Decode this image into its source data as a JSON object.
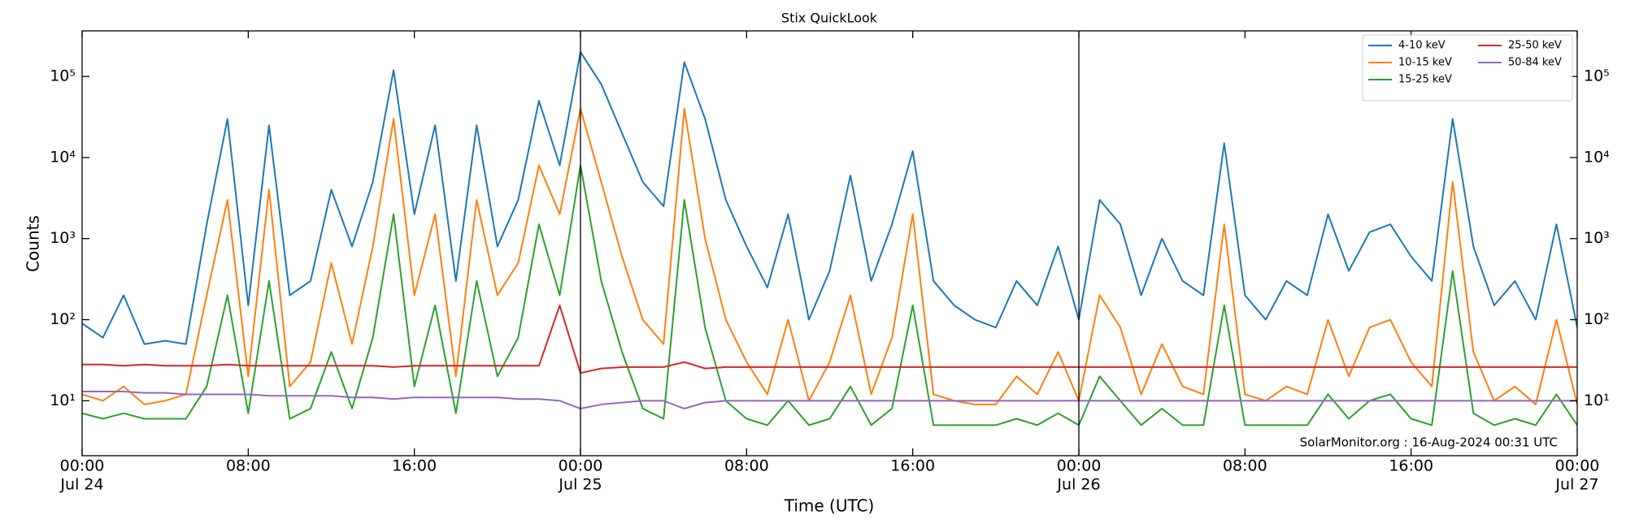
{
  "chart_data": {
    "type": "line",
    "title": "Stix QuickLook",
    "xlabel": "Time (UTC)",
    "ylabel": "Counts",
    "annotation": "SolarMonitor.org : 16-Aug-2024 00:31 UTC",
    "log_scale": true,
    "legend": "upper right",
    "grid": false,
    "vlines": [
      "Jul 25 00:00",
      "Jul 26 00:00"
    ],
    "x": [
      "Jul 24 00:00",
      "Jul 24 01:00",
      "Jul 24 02:00",
      "Jul 24 03:00",
      "Jul 24 04:00",
      "Jul 24 05:00",
      "Jul 24 06:00",
      "Jul 24 07:00",
      "Jul 24 08:00",
      "Jul 24 09:00",
      "Jul 24 10:00",
      "Jul 24 11:00",
      "Jul 24 12:00",
      "Jul 24 13:00",
      "Jul 24 14:00",
      "Jul 24 15:00",
      "Jul 24 16:00",
      "Jul 24 17:00",
      "Jul 24 18:00",
      "Jul 24 19:00",
      "Jul 24 20:00",
      "Jul 24 21:00",
      "Jul 24 22:00",
      "Jul 24 23:00",
      "Jul 25 00:00",
      "Jul 25 01:00",
      "Jul 25 02:00",
      "Jul 25 03:00",
      "Jul 25 04:00",
      "Jul 25 05:00",
      "Jul 25 06:00",
      "Jul 25 07:00",
      "Jul 25 08:00",
      "Jul 25 09:00",
      "Jul 25 10:00",
      "Jul 25 11:00",
      "Jul 25 12:00",
      "Jul 25 13:00",
      "Jul 25 14:00",
      "Jul 25 15:00",
      "Jul 25 16:00",
      "Jul 25 17:00",
      "Jul 25 18:00",
      "Jul 25 19:00",
      "Jul 25 20:00",
      "Jul 25 21:00",
      "Jul 25 22:00",
      "Jul 25 23:00",
      "Jul 26 00:00",
      "Jul 26 01:00",
      "Jul 26 02:00",
      "Jul 26 03:00",
      "Jul 26 04:00",
      "Jul 26 05:00",
      "Jul 26 06:00",
      "Jul 26 07:00",
      "Jul 26 08:00",
      "Jul 26 09:00",
      "Jul 26 10:00",
      "Jul 26 11:00",
      "Jul 26 12:00",
      "Jul 26 13:00",
      "Jul 26 14:00",
      "Jul 26 15:00",
      "Jul 26 16:00",
      "Jul 26 17:00",
      "Jul 26 18:00",
      "Jul 26 19:00",
      "Jul 26 20:00",
      "Jul 26 21:00",
      "Jul 26 22:00",
      "Jul 26 23:00",
      "Jul 27 00:00"
    ],
    "xticks": [
      {
        "value": "Jul 24 00:00",
        "label": [
          "00:00",
          "Jul 24"
        ]
      },
      {
        "value": "Jul 24 08:00",
        "label": "08:00"
      },
      {
        "value": "Jul 24 16:00",
        "label": "16:00"
      },
      {
        "value": "Jul 25 00:00",
        "label": [
          "00:00",
          "Jul 25"
        ]
      },
      {
        "value": "Jul 25 08:00",
        "label": "08:00"
      },
      {
        "value": "Jul 25 16:00",
        "label": "16:00"
      },
      {
        "value": "Jul 26 00:00",
        "label": [
          "00:00",
          "Jul 26"
        ]
      },
      {
        "value": "Jul 26 08:00",
        "label": "08:00"
      },
      {
        "value": "Jul 26 16:00",
        "label": "16:00"
      },
      {
        "value": "Jul 27 00:00",
        "label": [
          "00:00",
          "Jul 27"
        ]
      }
    ],
    "ylim": [
      2.1,
      365000
    ],
    "yticks": [
      {
        "value": 10,
        "label": "10¹"
      },
      {
        "value": 100,
        "label": "10²"
      },
      {
        "value": 1000,
        "label": "10³"
      },
      {
        "value": 10000,
        "label": "10⁴"
      },
      {
        "value": 100000,
        "label": "10⁵"
      }
    ],
    "series": [
      {
        "name": "4-10 keV",
        "color": "#1f77b4",
        "values": [
          90,
          60,
          200,
          50,
          55,
          50,
          1500,
          30000,
          150,
          25000,
          200,
          300,
          4000,
          800,
          5000,
          120000,
          2000,
          25000,
          300,
          25000,
          800,
          3000,
          50000,
          8000,
          200000,
          80000,
          20000,
          5000,
          2500,
          150000,
          30000,
          3000,
          800,
          250,
          2000,
          100,
          400,
          6000,
          300,
          1500,
          12000,
          300,
          150,
          100,
          80,
          300,
          150,
          800,
          100,
          3000,
          1500,
          200,
          1000,
          300,
          200,
          15000,
          200,
          100,
          300,
          200,
          2000,
          400,
          1200,
          1500,
          600,
          300,
          30000,
          800,
          150,
          300,
          100,
          1500,
          80
        ]
      },
      {
        "name": "10-15 keV",
        "color": "#ff7f0e",
        "values": [
          12,
          10,
          15,
          9,
          10,
          12,
          200,
          3000,
          20,
          4000,
          15,
          30,
          500,
          50,
          800,
          30000,
          200,
          2000,
          20,
          3000,
          200,
          500,
          8000,
          2000,
          40000,
          5000,
          600,
          100,
          50,
          40000,
          1000,
          100,
          30,
          12,
          100,
          10,
          30,
          200,
          12,
          60,
          2000,
          12,
          10,
          9,
          9,
          20,
          12,
          40,
          10,
          200,
          80,
          12,
          50,
          15,
          12,
          1500,
          12,
          10,
          15,
          12,
          100,
          20,
          80,
          100,
          30,
          15,
          5000,
          40,
          10,
          15,
          9,
          100,
          9
        ]
      },
      {
        "name": "15-25 keV",
        "color": "#2ca02c",
        "values": [
          7,
          6,
          7,
          6,
          6,
          6,
          15,
          200,
          7,
          300,
          6,
          8,
          40,
          8,
          60,
          2000,
          15,
          150,
          7,
          300,
          20,
          60,
          1500,
          200,
          8000,
          300,
          40,
          8,
          6,
          3000,
          80,
          10,
          6,
          5,
          10,
          5,
          6,
          15,
          5,
          8,
          150,
          5,
          5,
          5,
          5,
          6,
          5,
          7,
          5,
          20,
          10,
          5,
          8,
          5,
          5,
          150,
          5,
          5,
          5,
          5,
          12,
          6,
          10,
          12,
          6,
          5,
          400,
          7,
          5,
          6,
          5,
          12,
          5
        ]
      },
      {
        "name": "25-50 keV",
        "color": "#d62728",
        "values": [
          28,
          28,
          27,
          28,
          27,
          27,
          27,
          28,
          27,
          27,
          27,
          27,
          27,
          27,
          27,
          26,
          27,
          27,
          27,
          27,
          27,
          27,
          27,
          150,
          22,
          25,
          26,
          26,
          26,
          30,
          25,
          26,
          26,
          26,
          26,
          26,
          26,
          26,
          26,
          26,
          26,
          26,
          26,
          26,
          26,
          26,
          26,
          26,
          26,
          26,
          26,
          26,
          26,
          26,
          26,
          26,
          26,
          26,
          26,
          26,
          26,
          26,
          26,
          26,
          26,
          26,
          26,
          26,
          26,
          26,
          26,
          26,
          26
        ]
      },
      {
        "name": "50-84 keV",
        "color": "#9467bd",
        "values": [
          13,
          13,
          13,
          12.5,
          12.5,
          12,
          12,
          12,
          12,
          11.5,
          11.5,
          11.5,
          11.5,
          11,
          11,
          10.5,
          11,
          11,
          11,
          11,
          11,
          10.5,
          10.5,
          10,
          8,
          9,
          9.5,
          10,
          10,
          8,
          9.5,
          10,
          10,
          10,
          10,
          10,
          10,
          10,
          10,
          10,
          10,
          10,
          10,
          10,
          10,
          10,
          10,
          10,
          10,
          10,
          10,
          10,
          10,
          10,
          10,
          10,
          10,
          10,
          10,
          10,
          10,
          10,
          10,
          10,
          10,
          10,
          10,
          10,
          10,
          10,
          10,
          10,
          10
        ]
      }
    ]
  }
}
